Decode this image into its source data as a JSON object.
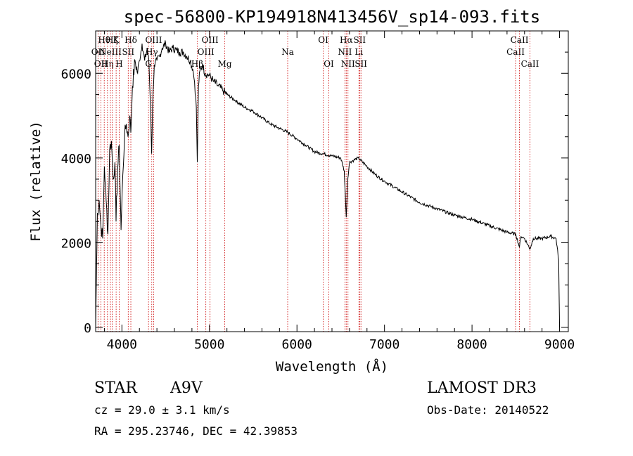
{
  "chart_data": {
    "type": "line",
    "title": "spec-56800-KP194918N413456V_sp14-093.fits",
    "xlabel": "Wavelength (Å)",
    "ylabel": "Flux (relative)",
    "xlim": [
      3700,
      9100
    ],
    "ylim": [
      -100,
      7000
    ],
    "xticks": [
      4000,
      5000,
      6000,
      7000,
      8000,
      9000
    ],
    "yticks": [
      0,
      2000,
      4000,
      6000
    ],
    "line_color": "#000000",
    "marker_color": "#cc0000",
    "series": [
      {
        "name": "spectrum",
        "x": [
          3700,
          3720,
          3740,
          3760,
          3780,
          3800,
          3820,
          3840,
          3860,
          3880,
          3900,
          3920,
          3933,
          3950,
          3970,
          3990,
          4010,
          4030,
          4050,
          4070,
          4090,
          4102,
          4120,
          4150,
          4180,
          4200,
          4230,
          4260,
          4290,
          4310,
          4330,
          4340,
          4350,
          4370,
          4400,
          4430,
          4460,
          4500,
          4540,
          4580,
          4620,
          4660,
          4700,
          4740,
          4780,
          4810,
          4830,
          4850,
          4861,
          4875,
          4890,
          4920,
          4950,
          5000,
          5050,
          5100,
          5150,
          5200,
          5300,
          5400,
          5500,
          5600,
          5700,
          5800,
          5900,
          6000,
          6100,
          6200,
          6300,
          6400,
          6500,
          6540,
          6563,
          6580,
          6600,
          6650,
          6700,
          6800,
          6900,
          7000,
          7200,
          7400,
          7600,
          7800,
          8000,
          8200,
          8400,
          8500,
          8542,
          8560,
          8600,
          8662,
          8700,
          8800,
          8900,
          8960,
          8990,
          9000
        ],
        "y": [
          0,
          2700,
          3000,
          2400,
          2100,
          3800,
          3000,
          2200,
          4200,
          4400,
          3500,
          3900,
          2500,
          3700,
          4300,
          2300,
          3600,
          4500,
          4800,
          4500,
          5000,
          4600,
          5700,
          6300,
          6000,
          6300,
          6700,
          6300,
          6600,
          6200,
          5000,
          4100,
          5200,
          6200,
          6300,
          6400,
          6600,
          6700,
          6500,
          6600,
          6550,
          6500,
          6500,
          6400,
          6300,
          6100,
          5800,
          5200,
          3900,
          5700,
          6050,
          6200,
          6000,
          5950,
          5800,
          5700,
          5600,
          5500,
          5350,
          5200,
          5100,
          4950,
          4800,
          4700,
          4600,
          4450,
          4300,
          4150,
          4100,
          4050,
          4000,
          3700,
          2600,
          3500,
          3900,
          3950,
          4000,
          3800,
          3600,
          3450,
          3200,
          2950,
          2800,
          2650,
          2550,
          2400,
          2250,
          2200,
          1900,
          2150,
          2100,
          1850,
          2100,
          2100,
          2150,
          2100,
          1600,
          0
        ]
      }
    ],
    "line_markers": [
      {
        "x": 3727,
        "label": "OII",
        "row": 2
      },
      {
        "x": 3760,
        "label": "OII",
        "row": 3
      },
      {
        "x": 3798,
        "label": "Hθ",
        "row": 1
      },
      {
        "x": 3835,
        "label": "Hη",
        "row": 3
      },
      {
        "x": 3869,
        "label": "NeIII",
        "row": 2
      },
      {
        "x": 3889,
        "label": "Hζ",
        "row": 1
      },
      {
        "x": 3934,
        "label": "K",
        "row": 1
      },
      {
        "x": 3969,
        "label": "H",
        "row": 3
      },
      {
        "x": 4072,
        "label": "SII",
        "row": 2
      },
      {
        "x": 4102,
        "label": "Hδ",
        "row": 1
      },
      {
        "x": 4304,
        "label": "G",
        "row": 3
      },
      {
        "x": 4341,
        "label": "Hγ",
        "row": 2
      },
      {
        "x": 4363,
        "label": "OIII",
        "row": 1
      },
      {
        "x": 4861,
        "label": "Hβ",
        "row": 3
      },
      {
        "x": 4959,
        "label": "OIII",
        "row": 2
      },
      {
        "x": 5007,
        "label": "OIII",
        "row": 1
      },
      {
        "x": 5175,
        "label": "Mg",
        "row": 3
      },
      {
        "x": 5894,
        "label": "Na",
        "row": 2
      },
      {
        "x": 6300,
        "label": "OI",
        "row": 1
      },
      {
        "x": 6364,
        "label": "OI",
        "row": 3
      },
      {
        "x": 6548,
        "label": "NII",
        "row": 2
      },
      {
        "x": 6563,
        "label": "Hα",
        "row": 1
      },
      {
        "x": 6583,
        "label": "NII",
        "row": 3
      },
      {
        "x": 6708,
        "label": "Li",
        "row": 2
      },
      {
        "x": 6716,
        "label": "SII",
        "row": 1
      },
      {
        "x": 6731,
        "label": "SII",
        "row": 3
      },
      {
        "x": 8498,
        "label": "CaII",
        "row": 2
      },
      {
        "x": 8542,
        "label": "CaII",
        "row": 1
      },
      {
        "x": 8662,
        "label": "CaII",
        "row": 3
      }
    ]
  },
  "info": {
    "class": "STAR",
    "subclass": "A9V",
    "survey": "LAMOST DR3",
    "redshift": "cz = 29.0 ± 3.1 km/s",
    "obsdate": "Obs-Date: 20140522",
    "coords": "RA = 295.23746, DEC =  42.39853"
  }
}
